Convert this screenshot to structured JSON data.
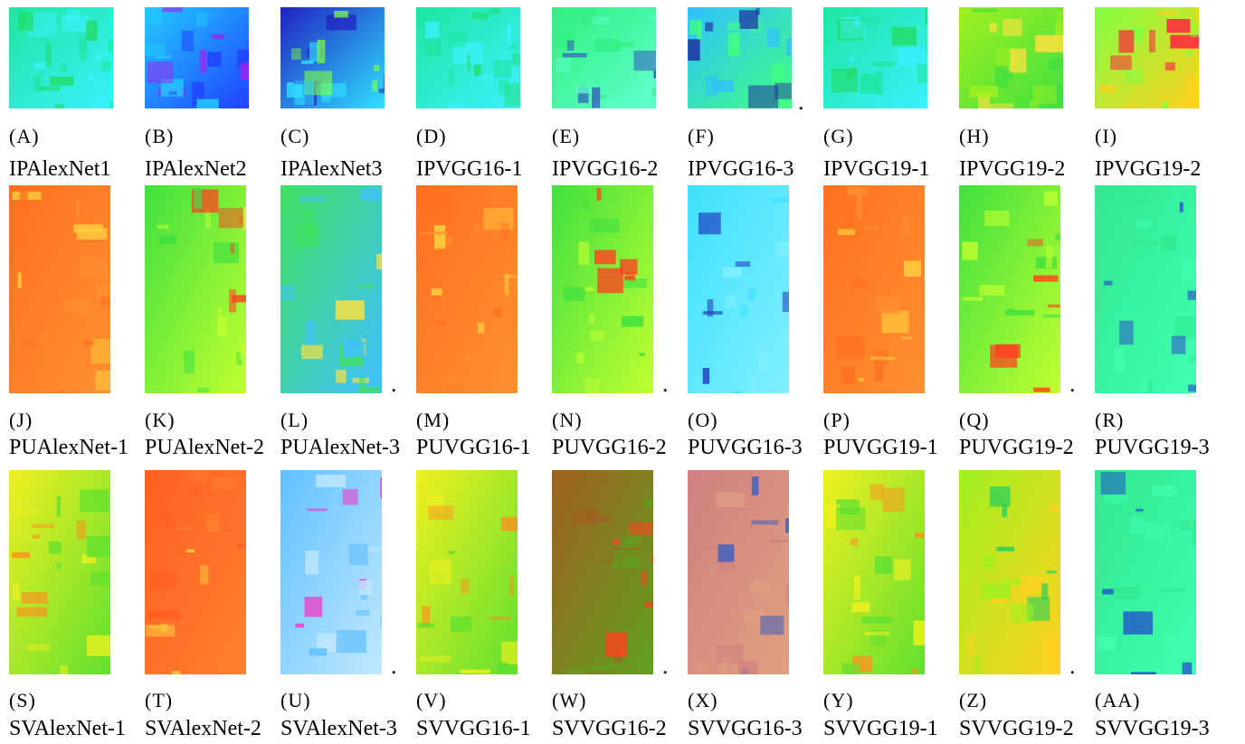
{
  "rows": [
    {
      "panels": [
        {
          "letter": "(A)",
          "caption": "IPAlexNet1"
        },
        {
          "letter": "(B)",
          "caption": "IPAlexNet2"
        },
        {
          "letter": "(C)",
          "caption": "IPAlexNet3"
        },
        {
          "letter": "(D)",
          "caption": "IPVGG16-1"
        },
        {
          "letter": "(E)",
          "caption": "IPVGG16-2"
        },
        {
          "letter": "(F)",
          "caption": "IPVGG16-3",
          "dot": "."
        },
        {
          "letter": "(G)",
          "caption": "IPVGG19-1"
        },
        {
          "letter": "(H)",
          "caption": "IPVGG19-2"
        },
        {
          "letter": "(I)",
          "caption": "IPVGG19-2"
        }
      ]
    },
    {
      "panels": [
        {
          "letter": "(J)",
          "caption": "PUAlexNet-1"
        },
        {
          "letter": "(K)",
          "caption": "PUAlexNet-2"
        },
        {
          "letter": "(L)",
          "caption": "PUAlexNet-3",
          "dot": "."
        },
        {
          "letter": "(M)",
          "caption": "PUVGG16-1"
        },
        {
          "letter": "(N)",
          "caption": "PUVGG16-2",
          "dot": "."
        },
        {
          "letter": "(O)",
          "caption": "PUVGG16-3"
        },
        {
          "letter": "(P)",
          "caption": "PUVGG19-1"
        },
        {
          "letter": "(Q)",
          "caption": "PUVGG19-2",
          "dot": "."
        },
        {
          "letter": "(R)",
          "caption": "PUVGG19-3"
        }
      ]
    },
    {
      "panels": [
        {
          "letter": "(S)",
          "caption": "SVAlexNet-1"
        },
        {
          "letter": "(T)",
          "caption": "SVAlexNet-2"
        },
        {
          "letter": "(U)",
          "caption": "SVAlexNet-3",
          "dot": "."
        },
        {
          "letter": "(V)",
          "caption": "SVVGG16-1"
        },
        {
          "letter": "(W)",
          "caption": "SVVGG16-2",
          "dot": "."
        },
        {
          "letter": "(X)",
          "caption": "SVVGG16-3"
        },
        {
          "letter": "(Y)",
          "caption": "SVVGG19-1"
        },
        {
          "letter": "(Z)",
          "caption": "SVVGG19-2",
          "dot": "."
        },
        {
          "letter": "(AA)",
          "caption": "SVVGG19-3"
        }
      ]
    }
  ]
}
